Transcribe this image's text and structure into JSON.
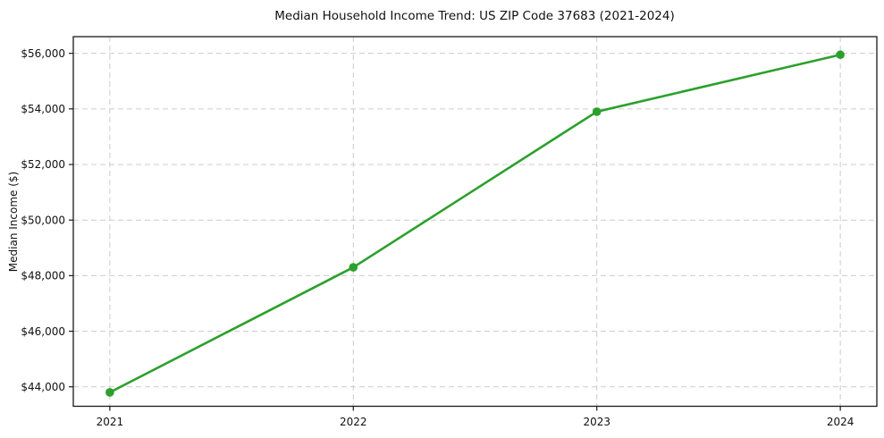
{
  "chart_data": {
    "type": "line",
    "title": "Median Household Income Trend: US ZIP Code 37683 (2021-2024)",
    "xlabel": "",
    "ylabel": "Median Income ($)",
    "x": [
      2021,
      2022,
      2023,
      2024
    ],
    "series": [
      {
        "name": "Median Household Income",
        "values": [
          43800,
          48300,
          53900,
          55950
        ]
      }
    ],
    "xticks": [
      {
        "value": 2021,
        "label": "2021"
      },
      {
        "value": 2022,
        "label": "2022"
      },
      {
        "value": 2023,
        "label": "2023"
      },
      {
        "value": 2024,
        "label": "2024"
      }
    ],
    "yticks": [
      {
        "value": 44000,
        "label": "$44,000"
      },
      {
        "value": 46000,
        "label": "$46,000"
      },
      {
        "value": 48000,
        "label": "$48,000"
      },
      {
        "value": 50000,
        "label": "$50,000"
      },
      {
        "value": 52000,
        "label": "$52,000"
      },
      {
        "value": 54000,
        "label": "$54,000"
      },
      {
        "value": 56000,
        "label": "$56,000"
      }
    ],
    "xlim": [
      2020.85,
      2024.15
    ],
    "ylim": [
      43300,
      56600
    ],
    "grid": true,
    "grid_style": "dashed",
    "legend_position": "none",
    "line_color": "#2ca02c",
    "marker": "circle",
    "marker_color": "#2ca02c",
    "grid_color": "#cccccc",
    "spine_color": "#1a1a1a",
    "background_color": "#ffffff"
  }
}
